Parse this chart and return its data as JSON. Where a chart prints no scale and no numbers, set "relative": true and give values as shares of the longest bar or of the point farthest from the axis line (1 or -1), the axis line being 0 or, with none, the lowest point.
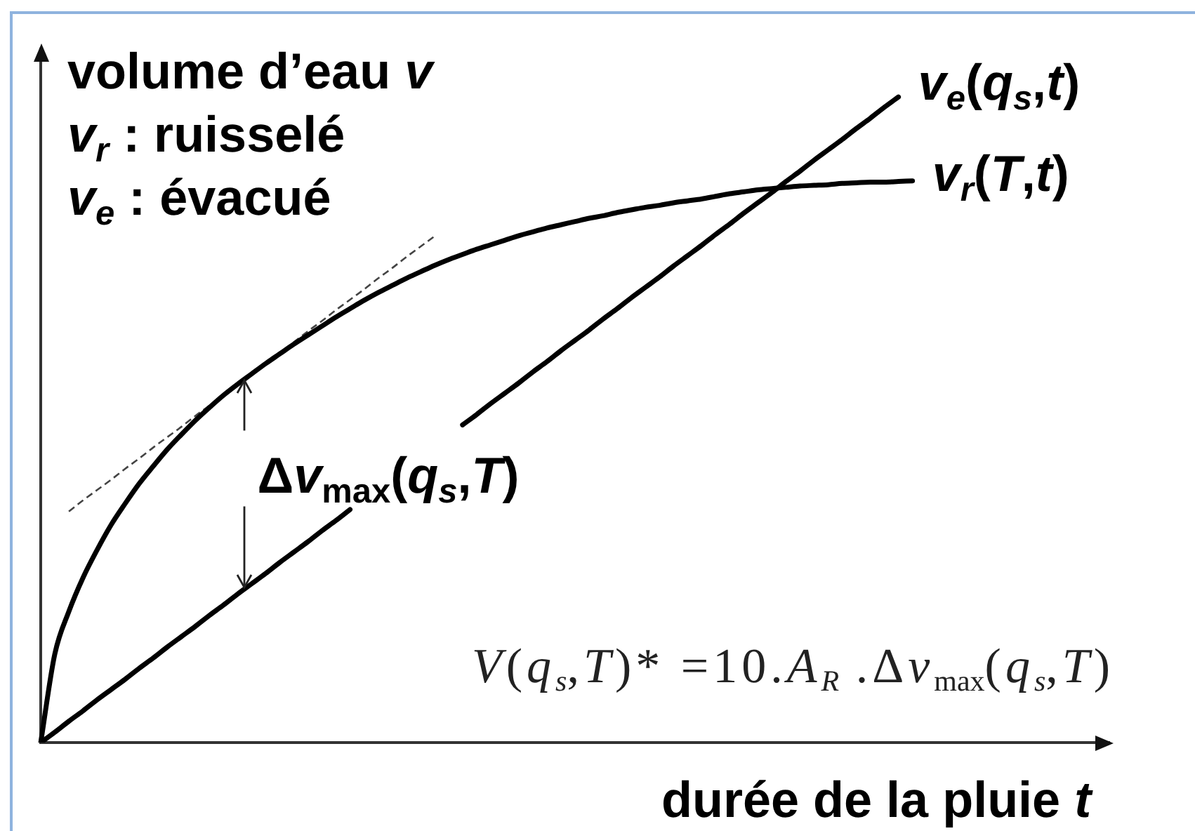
{
  "chart_data": {
    "type": "line",
    "relative": true,
    "marker": "none",
    "xlabel": "durée de la pluie t",
    "ylabel": "volume d’eau v\nv$_{r}$ : ruisselé\nv$_{e}$ : évacué",
    "annotations": [
      "Δv$_{max}$(q$_{s}$,T)",
      "V(q$_{s}$,T)* =10.A$_{R}$ .Δv$_{max}$(q$_{s}$,T)"
    ],
    "categories": [
      null,
      null,
      null,
      null,
      null,
      null,
      null,
      null,
      null,
      null,
      null,
      null,
      null,
      null,
      null,
      null,
      null,
      null,
      null,
      null,
      null,
      null,
      null,
      null,
      null,
      null,
      null,
      null,
      null,
      null,
      null,
      null,
      null,
      null,
      null,
      null,
      null,
      null,
      null,
      null,
      null,
      null,
      null,
      null,
      null,
      null,
      null,
      null,
      null,
      null,
      null,
      null,
      null,
      null,
      null,
      null,
      null,
      null,
      null,
      null,
      null,
      null,
      null,
      null,
      null,
      null,
      null,
      null,
      null,
      null,
      null,
      null,
      null,
      null,
      null,
      null,
      null
    ],
    "series": [
      {
        "name": "v$_{r}$(T,t)",
        "color": "#000000",
        "values": [
          0,
          0.137,
          0.203,
          0.255,
          0.298,
          0.337,
          0.37,
          0.401,
          0.428,
          0.454,
          0.477,
          0.499,
          0.519,
          0.538,
          0.555,
          0.571,
          0.587,
          0.602,
          0.617,
          0.631,
          0.645,
          0.659,
          0.672,
          0.685,
          0.697,
          0.708,
          0.719,
          0.729,
          0.739,
          0.748,
          0.756,
          0.764,
          0.771,
          0.778,
          0.785,
          0.791,
          0.797,
          0.802,
          0.807,
          0.812,
          0.816,
          0.821,
          0.825,
          0.829,
          0.832,
          0.836,
          0.839,
          0.842,
          0.846,
          0.85,
          0.853,
          0.856,
          0.858,
          0.86,
          0.862,
          0.863,
          0.864,
          0.866,
          0.867,
          0.868,
          0.868,
          0.869,
          0.87,
          null,
          null,
          null,
          null,
          null,
          null,
          null,
          null,
          null,
          null,
          null,
          null,
          null,
          null
        ]
      },
      {
        "name": "v$_{e}$(q$_{s}$,t)",
        "color": "#000000",
        "values": [
          0,
          0.016,
          0.033,
          0.049,
          0.066,
          0.082,
          0.098,
          0.115,
          0.131,
          0.148,
          0.164,
          0.18,
          0.197,
          0.213,
          0.23,
          0.246,
          0.262,
          0.279,
          0.295,
          0.311,
          0.328,
          0.344,
          0.361,
          null,
          null,
          null,
          null,
          null,
          null,
          null,
          0.492,
          0.508,
          0.525,
          0.541,
          0.557,
          0.574,
          0.59,
          0.607,
          0.623,
          0.639,
          0.656,
          0.672,
          0.689,
          0.705,
          0.721,
          0.738,
          0.754,
          0.77,
          0.787,
          0.803,
          0.82,
          0.836,
          0.852,
          0.869,
          0.885,
          0.902,
          0.918,
          0.934,
          0.951,
          0.967,
          0.984,
          1,
          null,
          null,
          null,
          null,
          null,
          null,
          null,
          null,
          null,
          null,
          null,
          null,
          null,
          null,
          null
        ]
      },
      {
        "color": "#444444",
        "line_style": "dashed",
        "values": [
          null,
          null,
          0.358,
          0.375,
          0.391,
          0.407,
          0.424,
          0.44,
          0.457,
          0.473,
          0.489,
          0.506,
          0.522,
          0.538,
          0.555,
          0.571,
          0.588,
          0.604,
          0.62,
          0.637,
          0.653,
          0.67,
          0.686,
          0.702,
          0.719,
          0.735,
          0.752,
          0.768,
          0.784,
          null,
          null,
          null,
          null,
          null,
          null,
          null,
          null,
          null,
          null,
          null,
          null,
          null,
          null,
          null,
          null,
          null,
          null,
          null,
          null,
          null,
          null,
          null,
          null,
          null,
          null,
          null,
          null,
          null,
          null,
          null,
          null,
          null,
          null,
          null,
          null,
          null,
          null,
          null,
          null,
          null,
          null,
          null,
          null,
          null,
          null,
          null,
          null
        ]
      }
    ]
  }
}
